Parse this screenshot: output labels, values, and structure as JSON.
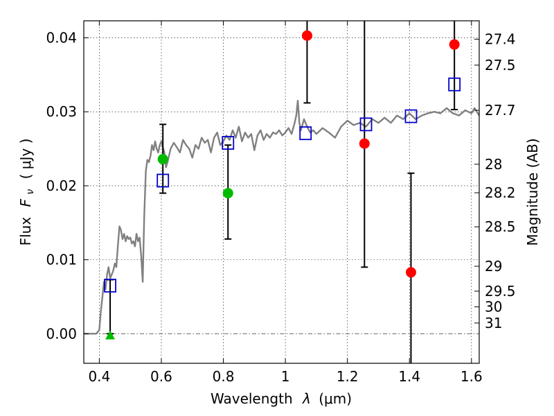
{
  "chart_data": {
    "type": "scatter",
    "xlabel": "Wavelength",
    "xlabel_symbol": "λ",
    "xlabel_unit": "(μm)",
    "ylabel": "Flux",
    "ylabel_symbol": "F",
    "ylabel_subscript": "ν",
    "ylabel_unit": "( μJy )",
    "y2label": "Magnitude (AB)",
    "xlim": [
      0.35,
      1.625
    ],
    "ylim": [
      -0.004,
      0.0423
    ],
    "grid": true,
    "x_ticks": [
      0.4,
      0.6,
      0.8,
      1.0,
      1.2,
      1.4,
      1.6
    ],
    "x_tick_labels": [
      "0.4",
      "0.6",
      "0.8",
      "1",
      "1.2",
      "1.4",
      "1.6"
    ],
    "y_ticks": [
      0.0,
      0.01,
      0.02,
      0.03,
      0.04
    ],
    "y_tick_labels": [
      "0.00",
      "0.01",
      "0.02",
      "0.03",
      "0.04"
    ],
    "magnitude_ticks": [
      {
        "label": "27.4",
        "mag": 27.4
      },
      {
        "label": "27.5",
        "mag": 27.5
      },
      {
        "label": "27.7",
        "mag": 27.7
      },
      {
        "label": "28",
        "mag": 28.0
      },
      {
        "label": "28.2",
        "mag": 28.2
      },
      {
        "label": "28.5",
        "mag": 28.5
      },
      {
        "label": "29",
        "mag": 29.0
      },
      {
        "label": "29.5",
        "mag": 29.5
      },
      {
        "label": "30",
        "mag": 30.0
      },
      {
        "label": "31",
        "mag": 31.0
      }
    ],
    "colors": {
      "model": "#808080",
      "squares": "#0000cc",
      "green": "#00bb00",
      "red": "#ff0000",
      "errorbar": "#000000",
      "zero_line": "#555555"
    },
    "series": [
      {
        "kind": "line",
        "x": [
          0.35,
          0.39,
          0.4,
          0.405,
          0.41,
          0.415,
          0.42,
          0.425,
          0.43,
          0.435,
          0.44,
          0.445,
          0.45,
          0.455,
          0.46,
          0.465,
          0.47,
          0.475,
          0.48,
          0.485,
          0.49,
          0.495,
          0.5,
          0.505,
          0.51,
          0.515,
          0.52,
          0.525,
          0.53,
          0.535,
          0.54,
          0.545,
          0.55,
          0.555,
          0.56,
          0.565,
          0.57,
          0.575,
          0.58,
          0.585,
          0.59,
          0.595,
          0.6,
          0.605,
          0.61,
          0.615,
          0.62,
          0.63,
          0.64,
          0.65,
          0.66,
          0.67,
          0.68,
          0.69,
          0.7,
          0.71,
          0.72,
          0.73,
          0.74,
          0.75,
          0.76,
          0.77,
          0.78,
          0.79,
          0.8,
          0.81,
          0.82,
          0.83,
          0.84,
          0.85,
          0.86,
          0.87,
          0.88,
          0.89,
          0.9,
          0.91,
          0.92,
          0.93,
          0.94,
          0.95,
          0.96,
          0.97,
          0.98,
          0.99,
          1.0,
          1.01,
          1.02,
          1.03,
          1.035,
          1.04,
          1.045,
          1.05,
          1.06,
          1.07,
          1.08,
          1.09,
          1.1,
          1.12,
          1.14,
          1.16,
          1.18,
          1.2,
          1.22,
          1.24,
          1.26,
          1.28,
          1.3,
          1.32,
          1.34,
          1.36,
          1.38,
          1.4,
          1.42,
          1.44,
          1.46,
          1.48,
          1.5,
          1.52,
          1.54,
          1.56,
          1.58,
          1.6,
          1.61,
          1.625
        ],
        "y": [
          0.0,
          0.0,
          0.0005,
          0.003,
          0.005,
          0.007,
          0.006,
          0.008,
          0.009,
          0.0075,
          0.008,
          0.0085,
          0.0095,
          0.009,
          0.012,
          0.0145,
          0.014,
          0.0128,
          0.0135,
          0.0125,
          0.0132,
          0.0128,
          0.013,
          0.0122,
          0.0125,
          0.0118,
          0.0135,
          0.0125,
          0.013,
          0.0105,
          0.007,
          0.016,
          0.022,
          0.0235,
          0.0232,
          0.024,
          0.0255,
          0.0248,
          0.026,
          0.025,
          0.0245,
          0.0255,
          0.026,
          0.0252,
          0.0245,
          0.0225,
          0.0232,
          0.025,
          0.0258,
          0.0252,
          0.0245,
          0.0262,
          0.0255,
          0.025,
          0.0238,
          0.0255,
          0.025,
          0.0265,
          0.0258,
          0.0262,
          0.0245,
          0.0265,
          0.0272,
          0.0255,
          0.026,
          0.0268,
          0.0262,
          0.0275,
          0.0265,
          0.028,
          0.026,
          0.0272,
          0.0265,
          0.027,
          0.0248,
          0.0268,
          0.0275,
          0.0262,
          0.027,
          0.0265,
          0.0272,
          0.027,
          0.0275,
          0.0268,
          0.0272,
          0.0278,
          0.027,
          0.0285,
          0.0295,
          0.0315,
          0.0285,
          0.0275,
          0.029,
          0.028,
          0.0272,
          0.0275,
          0.027,
          0.0278,
          0.0272,
          0.0265,
          0.028,
          0.0288,
          0.0282,
          0.0285,
          0.028,
          0.029,
          0.0285,
          0.0292,
          0.0285,
          0.0295,
          0.029,
          0.0298,
          0.029,
          0.0295,
          0.0298,
          0.03,
          0.0298,
          0.0305,
          0.0298,
          0.0295,
          0.0302,
          0.0298,
          0.0305,
          0.0295
        ]
      },
      {
        "kind": "errorbar",
        "points": [
          {
            "x": 0.435,
            "low": 0.0,
            "high": 0.0073
          },
          {
            "x": 0.605,
            "low": 0.019,
            "high": 0.0283
          },
          {
            "x": 0.815,
            "low": 0.0128,
            "high": 0.0255
          },
          {
            "x": 1.07,
            "low": 0.0312,
            "high": 0.0423
          },
          {
            "x": 1.255,
            "low": 0.009,
            "high": 0.0423
          },
          {
            "x": 1.405,
            "low": -0.004,
            "high": 0.0217
          },
          {
            "x": 1.545,
            "low": 0.0303,
            "high": 0.0423
          }
        ]
      },
      {
        "kind": "open-square",
        "x": [
          0.435,
          0.605,
          0.815,
          1.065,
          1.26,
          1.405,
          1.545
        ],
        "y": [
          0.0065,
          0.0207,
          0.0258,
          0.0271,
          0.0283,
          0.0294,
          0.0337
        ]
      },
      {
        "kind": "green-circle",
        "x": [
          0.605,
          0.815
        ],
        "y": [
          0.0236,
          0.019
        ]
      },
      {
        "kind": "green-triangle",
        "x": [
          0.435
        ],
        "y": [
          -0.0002
        ]
      },
      {
        "kind": "red-circle",
        "x": [
          1.07,
          1.255,
          1.405,
          1.545
        ],
        "y": [
          0.0403,
          0.0257,
          0.0083,
          0.0391
        ]
      }
    ]
  }
}
